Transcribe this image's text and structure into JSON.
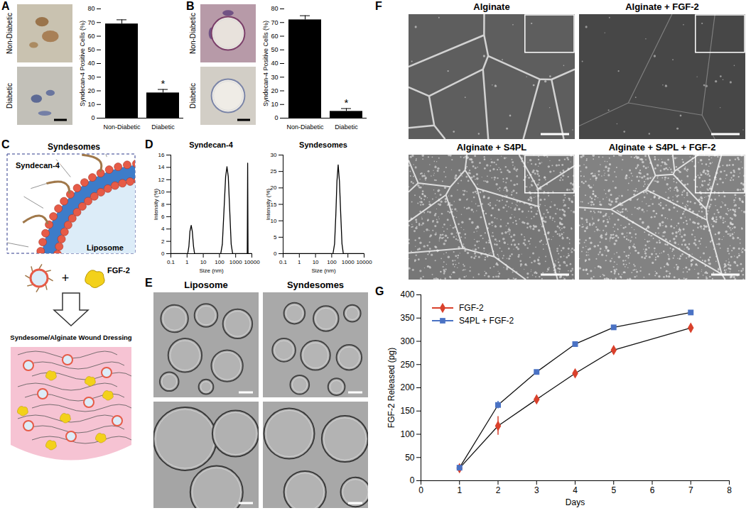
{
  "chart_data": [
    {
      "panel": "A",
      "type": "bar",
      "image_labels": [
        "Non-Diabetic",
        "Diabetic"
      ],
      "categories": [
        "Non-Diabetic",
        "Diabetic"
      ],
      "values": [
        69,
        18.5
      ],
      "errors": [
        3,
        2.5
      ],
      "color": "#000000",
      "ylabel": "Syndecan-4 Positive Cells (%)",
      "ylim": [
        0,
        80
      ],
      "yticks": [
        0,
        10,
        20,
        30,
        40,
        50,
        60,
        70,
        80
      ],
      "annotations": [
        {
          "category": "Diabetic",
          "text": "*"
        }
      ]
    },
    {
      "panel": "B",
      "type": "bar",
      "image_labels": [
        "Non-Diabetic",
        "Diabetic"
      ],
      "categories": [
        "Non-Diabetic",
        "Diabetic"
      ],
      "values": [
        72,
        5
      ],
      "errors": [
        3,
        2
      ],
      "color": "#000000",
      "ylabel": "Syndecan-4 Positive Cells (%)",
      "ylim": [
        0,
        80
      ],
      "yticks": [
        0,
        10,
        20,
        30,
        40,
        50,
        60,
        70,
        80
      ],
      "annotations": [
        {
          "category": "Diabetic",
          "text": "*"
        }
      ]
    },
    {
      "panel": "D",
      "type": "line",
      "title": "Syndecan-4",
      "x": [
        0.1,
        1.1,
        1.3,
        1.5,
        1.8,
        2.1,
        2.5,
        2.9,
        120,
        150,
        190,
        240,
        290,
        350,
        430,
        530,
        650,
        5200,
        5500,
        5800,
        10000
      ],
      "values": [
        0,
        0,
        1.2,
        3.6,
        4.6,
        3.6,
        1.2,
        0,
        0,
        1.5,
        7,
        12.5,
        14.1,
        12.5,
        7,
        1.5,
        0,
        0,
        14.7,
        0,
        0
      ],
      "color": "#000000",
      "xlabel": "Size (nm)",
      "ylabel": "Intensity (%)",
      "log": "x",
      "xlim": [
        0.1,
        10000
      ],
      "xticks": [
        0.1,
        1,
        10,
        100,
        1000,
        10000
      ],
      "ylim": [
        0,
        16
      ],
      "yticks": [
        0,
        2,
        4,
        6,
        8,
        10,
        12,
        14,
        16
      ]
    },
    {
      "type": "line",
      "title": "Syndesomes",
      "x": [
        0.1,
        120,
        150,
        180,
        210,
        250,
        300,
        360,
        430,
        520,
        10000
      ],
      "values": [
        0,
        0,
        3,
        12,
        22,
        27,
        22,
        12,
        3,
        0,
        0
      ],
      "color": "#000000",
      "xlabel": "Size (nm)",
      "ylabel": "Intensity (%)",
      "log": "x",
      "xlim": [
        0.1,
        10000
      ],
      "xticks": [
        0.1,
        1,
        10,
        100,
        1000,
        10000
      ],
      "ylim": [
        0,
        30
      ],
      "yticks": [
        0,
        5,
        10,
        15,
        20,
        25,
        30
      ]
    },
    {
      "panel": "G",
      "type": "line",
      "x": [
        1,
        2,
        3,
        4,
        5,
        7
      ],
      "series": [
        {
          "name": "FGF-2",
          "color": "#d9412c",
          "marker": "diamond",
          "values": [
            27,
            118,
            175,
            231,
            281,
            329
          ],
          "errors": [
            2,
            20,
            3,
            3,
            3,
            8
          ]
        },
        {
          "name": "S4PL + FGF-2",
          "color": "#4a72c4",
          "marker": "square",
          "values": [
            28,
            163,
            234,
            294,
            330,
            362
          ],
          "errors": [
            2,
            8,
            3,
            3,
            3,
            3
          ]
        }
      ],
      "xlabel": "Days",
      "ylabel": "FGF-2 Released (pg)",
      "xlim": [
        0,
        8
      ],
      "xticks": [
        0,
        1,
        2,
        3,
        4,
        5,
        6,
        7,
        8
      ],
      "ylim": [
        0,
        400
      ],
      "yticks": [
        0,
        50,
        100,
        150,
        200,
        250,
        300,
        350,
        400
      ],
      "legend": "top-left"
    }
  ],
  "panels": [
    {
      "panel": "C",
      "title": "Syndesomes",
      "labels": [
        "Syndecan-4",
        "Liposome"
      ],
      "plus": "+",
      "growth_factor": "FGF-2",
      "result": "Syndesome/Alginate Wound Dressing"
    },
    {
      "panel": "E",
      "image_titles": [
        "Liposome",
        "Syndesomes"
      ]
    },
    {
      "panel": "F",
      "image_titles": [
        "Alginate",
        "Alginate + FGF-2",
        "Alginate + S4PL",
        "Alginate + S4PL + FGF-2"
      ]
    }
  ]
}
